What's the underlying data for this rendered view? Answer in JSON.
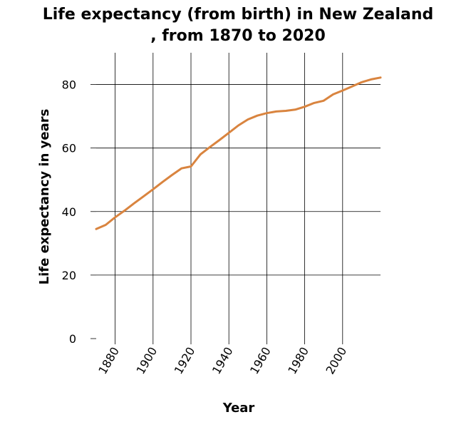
{
  "chart_data": {
    "type": "line",
    "title_line1": "Life expectancy (from birth) in New Zealand",
    "title_line2": ", from 1870 to 2020",
    "xlabel": "Year",
    "ylabel": "Life expectancy in years",
    "xlim": [
      1870,
      2020
    ],
    "ylim": [
      0,
      90
    ],
    "x_ticks": [
      1880,
      1900,
      1920,
      1940,
      1960,
      1980,
      2000
    ],
    "y_ticks": [
      0,
      20,
      40,
      60,
      80
    ],
    "grid": true,
    "line_color": "#d9843f",
    "series": [
      {
        "x": [
          1870,
          1875,
          1880,
          1885,
          1890,
          1895,
          1900,
          1905,
          1910,
          1915,
          1920,
          1925,
          1930,
          1935,
          1940,
          1945,
          1950,
          1955,
          1960,
          1965,
          1970,
          1975,
          1980,
          1985,
          1990,
          1995,
          2000,
          2005,
          2010,
          2015,
          2020
        ],
        "y": [
          34.5,
          35.8,
          38.2,
          40.3,
          42.6,
          44.8,
          47.0,
          49.3,
          51.5,
          53.6,
          54.2,
          58.0,
          60.3,
          62.5,
          64.8,
          67.1,
          69.0,
          70.2,
          71.0,
          71.5,
          71.7,
          72.1,
          73.0,
          74.2,
          74.9,
          76.9,
          78.1,
          79.4,
          80.7,
          81.6,
          82.2
        ]
      }
    ]
  }
}
